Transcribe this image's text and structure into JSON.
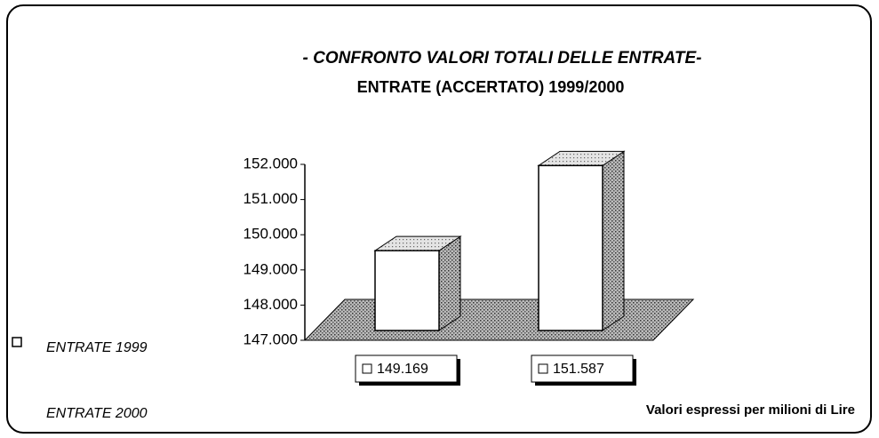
{
  "chart_data": {
    "type": "bar3d",
    "title": "- CONFRONTO VALORI TOTALI DELLE ENTRATE-",
    "subtitle": "ENTRATE (ACCERTATO) 1999/2000",
    "categories": [
      "ENTRATE 1999",
      "ENTRATE 2000"
    ],
    "values": [
      149169,
      151587
    ],
    "value_labels": [
      "149.169",
      "151.587"
    ],
    "color": "#ffffff",
    "ylim": [
      147000,
      152000
    ],
    "yticks": [
      {
        "value": 147000,
        "label": "147.000"
      },
      {
        "value": 148000,
        "label": "148.000"
      },
      {
        "value": 149000,
        "label": "149.000"
      },
      {
        "value": 150000,
        "label": "150.000"
      },
      {
        "value": 151000,
        "label": "151.000"
      },
      {
        "value": 152000,
        "label": "152.000"
      }
    ],
    "note": "Valori espressi per milioni di Lire"
  }
}
